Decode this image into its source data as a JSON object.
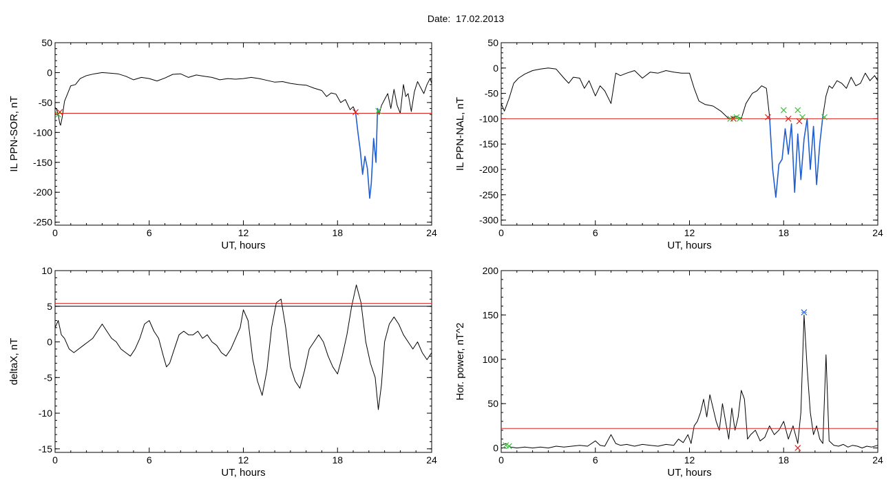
{
  "page": {
    "title": "Date:  17.02.2013"
  },
  "colors": {
    "line": "#000000",
    "threshold": "#e0201b",
    "highlight": "#1f5fd0",
    "start_marker": "#3fbf3f",
    "end_marker": "#e0201b"
  },
  "chart_data": [
    {
      "id": "sor",
      "type": "line",
      "title": "",
      "xlabel": "UT, hours",
      "ylabel": "IL PPN-SOR, nT",
      "xlim": [
        0,
        24
      ],
      "ylim": [
        -255,
        50
      ],
      "xticks": [
        0,
        6,
        12,
        18,
        24
      ],
      "yticks": [
        50,
        0,
        -50,
        -100,
        -150,
        -200,
        -250
      ],
      "grid": false,
      "series": [
        {
          "role": "signal",
          "x": [
            0,
            0.1,
            0.2,
            0.3,
            0.35,
            0.45,
            0.6,
            0.8,
            1.0,
            1.3,
            1.6,
            2.0,
            2.5,
            3.0,
            3.5,
            4.0,
            4.5,
            5.0,
            5.5,
            6.0,
            6.5,
            7.0,
            7.5,
            8.0,
            8.5,
            9.0,
            9.5,
            10.0,
            10.5,
            11.0,
            11.5,
            12.0,
            12.5,
            13.0,
            13.5,
            14.0,
            14.5,
            15.0,
            15.5,
            16.0,
            16.5,
            17.0,
            17.3,
            17.6,
            17.9,
            18.2,
            18.5,
            18.8,
            19.0,
            19.15,
            19.3,
            19.45,
            19.6,
            19.75,
            19.9,
            20.05,
            20.15,
            20.3,
            20.45,
            20.55,
            20.65,
            20.8,
            21.0,
            21.2,
            21.4,
            21.6,
            21.8,
            22.0,
            22.2,
            22.35,
            22.5,
            22.7,
            22.9,
            23.1,
            23.3,
            23.5,
            23.7,
            23.9,
            24.0
          ],
          "y": [
            -58,
            -62,
            -70,
            -85,
            -88,
            -75,
            -48,
            -35,
            -22,
            -20,
            -10,
            -5,
            -2,
            0,
            -1,
            -2,
            -6,
            -12,
            -8,
            -10,
            -14,
            -9,
            -3,
            -2,
            -8,
            -4,
            -6,
            -8,
            -12,
            -10,
            -11,
            -10,
            -8,
            -10,
            -13,
            -16,
            -15,
            -18,
            -20,
            -21,
            -26,
            -30,
            -40,
            -34,
            -36,
            -50,
            -45,
            -62,
            -57,
            -66,
            -100,
            -130,
            -170,
            -140,
            -160,
            -210,
            -185,
            -110,
            -150,
            -60,
            -70,
            -55,
            -45,
            -35,
            -60,
            -28,
            -55,
            -68,
            -20,
            -40,
            -35,
            -65,
            -32,
            -15,
            -25,
            -35,
            -20,
            -10,
            -18
          ]
        },
        {
          "role": "highlight",
          "x": [
            19.15,
            19.3,
            19.45,
            19.6,
            19.75,
            19.9,
            20.05,
            20.15,
            20.3,
            20.45,
            20.55,
            20.65
          ],
          "y": [
            -66,
            -100,
            -130,
            -170,
            -140,
            -160,
            -210,
            -185,
            -110,
            -150,
            -60,
            -68
          ]
        },
        {
          "role": "threshold",
          "y": -68
        }
      ],
      "markers": [
        {
          "x": 0.2,
          "y": -70,
          "kind": "start"
        },
        {
          "x": 0.3,
          "y": -66,
          "kind": "end"
        },
        {
          "x": 19.15,
          "y": -66,
          "kind": "end"
        },
        {
          "x": 20.6,
          "y": -64,
          "kind": "start"
        }
      ]
    },
    {
      "id": "nal",
      "type": "line",
      "title": "",
      "xlabel": "UT, hours",
      "ylabel": "IL PPN-NAL, nT",
      "xlim": [
        0,
        24
      ],
      "ylim": [
        -310,
        50
      ],
      "xticks": [
        0,
        6,
        12,
        18,
        24
      ],
      "yticks": [
        50,
        0,
        -50,
        -100,
        -150,
        -200,
        -250,
        -300
      ],
      "grid": false,
      "series": [
        {
          "role": "signal",
          "x": [
            0,
            0.2,
            0.5,
            0.8,
            1.1,
            1.5,
            2.0,
            2.5,
            3.0,
            3.5,
            4.0,
            4.3,
            4.6,
            5.0,
            5.3,
            5.6,
            6.0,
            6.3,
            6.6,
            7.0,
            7.3,
            7.6,
            8.0,
            8.5,
            9.0,
            9.5,
            10.0,
            10.5,
            11.0,
            11.5,
            12.0,
            12.3,
            12.6,
            13.0,
            13.5,
            14.0,
            14.5,
            15.0,
            15.3,
            15.6,
            16.0,
            16.3,
            16.6,
            16.9,
            17.1,
            17.3,
            17.5,
            17.7,
            17.9,
            18.1,
            18.3,
            18.5,
            18.7,
            18.9,
            19.1,
            19.3,
            19.5,
            19.7,
            19.9,
            20.1,
            20.3,
            20.5,
            20.7,
            20.9,
            21.1,
            21.4,
            21.7,
            22.0,
            22.3,
            22.6,
            22.9,
            23.2,
            23.5,
            23.8,
            24.0
          ],
          "y": [
            -70,
            -85,
            -60,
            -30,
            -20,
            -12,
            -5,
            -2,
            0,
            -2,
            -20,
            -30,
            -18,
            -20,
            -40,
            -25,
            -55,
            -35,
            -45,
            -70,
            -10,
            -15,
            -10,
            -5,
            -20,
            -8,
            -10,
            -5,
            -8,
            -10,
            -10,
            -40,
            -65,
            -72,
            -75,
            -85,
            -100,
            -95,
            -100,
            -70,
            -50,
            -45,
            -35,
            -40,
            -95,
            -200,
            -255,
            -190,
            -180,
            -120,
            -170,
            -110,
            -245,
            -130,
            -220,
            -140,
            -100,
            -200,
            -115,
            -230,
            -150,
            -95,
            -55,
            -35,
            -40,
            -25,
            -30,
            -40,
            -18,
            -35,
            -30,
            -10,
            -25,
            -15,
            -25
          ]
        },
        {
          "role": "highlight",
          "x": [
            17.1,
            17.3,
            17.5,
            17.7,
            17.9,
            18.1,
            18.3,
            18.5,
            18.7,
            18.9,
            19.1,
            19.3,
            19.5,
            19.7,
            19.9,
            20.1,
            20.3,
            20.5
          ],
          "y": [
            -95,
            -200,
            -255,
            -190,
            -180,
            -120,
            -170,
            -110,
            -245,
            -130,
            -220,
            -140,
            -100,
            -200,
            -115,
            -230,
            -150,
            -95
          ]
        },
        {
          "role": "threshold",
          "y": -100
        }
      ],
      "markers": [
        {
          "x": 14.6,
          "y": -100,
          "kind": "start"
        },
        {
          "x": 14.8,
          "y": -100,
          "kind": "end"
        },
        {
          "x": 15.0,
          "y": -97,
          "kind": "start"
        },
        {
          "x": 15.2,
          "y": -100,
          "kind": "start"
        },
        {
          "x": 17.0,
          "y": -97,
          "kind": "end"
        },
        {
          "x": 18.0,
          "y": -83,
          "kind": "start"
        },
        {
          "x": 18.3,
          "y": -100,
          "kind": "end"
        },
        {
          "x": 18.9,
          "y": -83,
          "kind": "start"
        },
        {
          "x": 19.0,
          "y": -105,
          "kind": "end"
        },
        {
          "x": 19.2,
          "y": -97,
          "kind": "start"
        },
        {
          "x": 20.6,
          "y": -97,
          "kind": "start"
        }
      ]
    },
    {
      "id": "deltax",
      "type": "line",
      "title": "",
      "xlabel": "UT, hours",
      "ylabel": "deltaX, nT",
      "xlim": [
        0,
        24
      ],
      "ylim": [
        -15.5,
        10
      ],
      "xticks": [
        0,
        6,
        12,
        18,
        24
      ],
      "yticks": [
        10,
        5,
        0,
        -5,
        -10,
        -15
      ],
      "grid": false,
      "series": [
        {
          "role": "signal",
          "x": [
            0,
            0.2,
            0.4,
            0.6,
            0.9,
            1.2,
            1.5,
            1.8,
            2.1,
            2.4,
            2.7,
            3.0,
            3.3,
            3.6,
            3.9,
            4.2,
            4.5,
            4.8,
            5.1,
            5.4,
            5.7,
            6.0,
            6.3,
            6.6,
            6.9,
            7.1,
            7.3,
            7.6,
            7.9,
            8.2,
            8.5,
            8.8,
            9.1,
            9.4,
            9.7,
            10.0,
            10.3,
            10.6,
            10.9,
            11.2,
            11.5,
            11.8,
            12.0,
            12.3,
            12.6,
            12.9,
            13.2,
            13.5,
            13.8,
            14.1,
            14.4,
            14.7,
            15.0,
            15.3,
            15.6,
            15.9,
            16.2,
            16.5,
            16.8,
            17.1,
            17.4,
            17.7,
            18.0,
            18.3,
            18.6,
            18.9,
            19.2,
            19.5,
            19.8,
            20.1,
            20.4,
            20.6,
            20.8,
            21.0,
            21.3,
            21.6,
            21.9,
            22.2,
            22.5,
            22.8,
            23.1,
            23.4,
            23.7,
            24.0
          ],
          "y": [
            2.0,
            3.0,
            1.0,
            0.5,
            -1.0,
            -1.5,
            -1.0,
            -0.5,
            0.0,
            0.5,
            1.5,
            2.5,
            1.5,
            0.5,
            0.0,
            -1.0,
            -1.5,
            -2.0,
            -1.0,
            0.5,
            2.5,
            3.0,
            1.5,
            0.5,
            -2.0,
            -3.5,
            -3.0,
            -1.0,
            1.0,
            1.5,
            1.0,
            1.0,
            1.5,
            0.5,
            1.0,
            0.0,
            -0.5,
            -1.5,
            -2.0,
            -1.0,
            0.5,
            2.0,
            4.5,
            3.0,
            -2.5,
            -5.5,
            -7.5,
            -4.0,
            2.0,
            5.5,
            6.0,
            2.0,
            -3.5,
            -5.5,
            -6.5,
            -4.0,
            -1.0,
            0.0,
            1.0,
            0.0,
            -2.0,
            -3.5,
            -4.5,
            -2.0,
            1.0,
            5.0,
            8.0,
            5.5,
            0.0,
            -3.0,
            -5.0,
            -9.5,
            -6.0,
            0.0,
            2.5,
            3.5,
            2.5,
            1.0,
            0.0,
            -1.0,
            0.0,
            -1.5,
            -2.5,
            -1.5
          ]
        },
        {
          "role": "threshold",
          "y": 5.4
        },
        {
          "role": "threshold_lower",
          "y": 5.0
        }
      ],
      "markers": []
    },
    {
      "id": "power",
      "type": "line",
      "title": "",
      "xlabel": "UT, hours",
      "ylabel": "Hor. power, nT^2",
      "xlim": [
        0,
        24
      ],
      "ylim": [
        -5,
        200
      ],
      "xticks": [
        0,
        6,
        12,
        18,
        24
      ],
      "yticks": [
        200,
        150,
        100,
        50,
        0
      ],
      "grid": false,
      "series": [
        {
          "role": "signal",
          "x": [
            0,
            0.3,
            0.6,
            1.0,
            1.5,
            2.0,
            2.5,
            3.0,
            3.5,
            4.0,
            4.5,
            5.0,
            5.5,
            6.0,
            6.3,
            6.6,
            7.0,
            7.3,
            7.6,
            8.0,
            8.5,
            9.0,
            9.5,
            10.0,
            10.5,
            11.0,
            11.3,
            11.6,
            11.9,
            12.1,
            12.3,
            12.5,
            12.7,
            12.9,
            13.1,
            13.3,
            13.5,
            13.7,
            13.9,
            14.1,
            14.3,
            14.5,
            14.7,
            14.9,
            15.1,
            15.3,
            15.5,
            15.7,
            15.9,
            16.2,
            16.5,
            16.8,
            17.1,
            17.4,
            17.7,
            18.0,
            18.3,
            18.6,
            18.9,
            19.1,
            19.3,
            19.5,
            19.7,
            19.9,
            20.1,
            20.3,
            20.5,
            20.7,
            20.9,
            21.2,
            21.5,
            21.8,
            22.1,
            22.4,
            22.7,
            23.0,
            23.3,
            23.6,
            24.0
          ],
          "y": [
            3,
            5,
            1,
            0,
            1,
            0,
            1,
            0,
            2,
            1,
            2,
            3,
            2,
            8,
            3,
            2,
            15,
            5,
            3,
            4,
            2,
            4,
            3,
            2,
            4,
            3,
            10,
            6,
            15,
            5,
            25,
            30,
            40,
            55,
            35,
            60,
            45,
            30,
            20,
            50,
            30,
            10,
            45,
            20,
            35,
            65,
            55,
            10,
            15,
            20,
            8,
            12,
            25,
            15,
            20,
            30,
            10,
            25,
            5,
            40,
            150,
            90,
            40,
            15,
            25,
            10,
            5,
            105,
            8,
            3,
            2,
            4,
            1,
            3,
            2,
            0,
            2,
            1,
            3
          ]
        },
        {
          "role": "threshold",
          "y": 22
        }
      ],
      "markers": [
        {
          "x": 0.3,
          "y": 3,
          "kind": "start"
        },
        {
          "x": 0.5,
          "y": 2,
          "kind": "start"
        },
        {
          "x": 19.3,
          "y": 153,
          "kind": "peak"
        },
        {
          "x": 18.9,
          "y": 0,
          "kind": "end"
        }
      ]
    }
  ]
}
